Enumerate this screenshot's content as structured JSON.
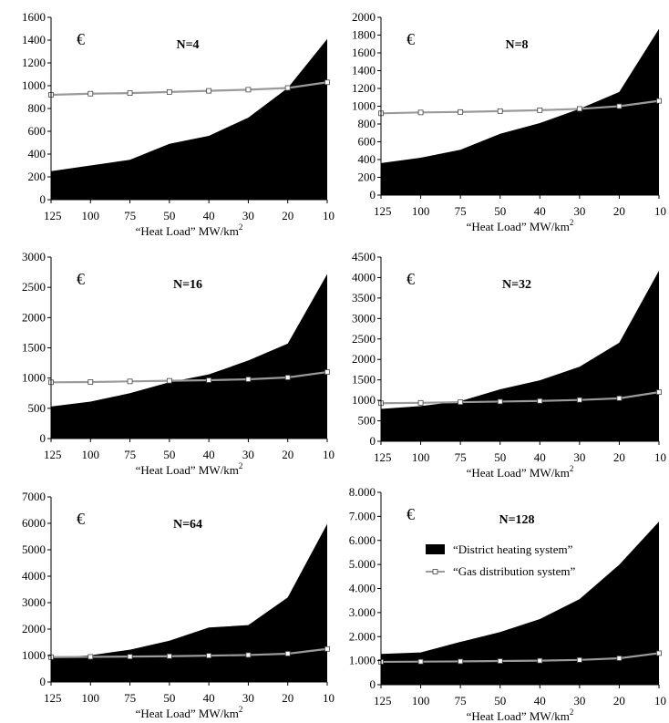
{
  "chart_data": [
    {
      "type": "area",
      "title": "N=4",
      "unit_symbol": "€",
      "xlabel": "“Heat Load” MW/km",
      "xlabel_sup": "2",
      "categories": [
        "125",
        "100",
        "75",
        "50",
        "40",
        "30",
        "20",
        "10"
      ],
      "ylim": [
        0,
        1600
      ],
      "yticks": [
        "0",
        "200",
        "400",
        "600",
        "800",
        "1000",
        "1200",
        "1400",
        "1600"
      ],
      "series": [
        {
          "name": "“District heating system”",
          "type": "area",
          "color": "#000000",
          "values": [
            250,
            300,
            350,
            490,
            560,
            720,
            980,
            1410
          ]
        },
        {
          "name": "“Gas distribution system”",
          "type": "line",
          "color": "#9a9a9a",
          "values": [
            920,
            930,
            935,
            945,
            955,
            965,
            980,
            1030
          ]
        }
      ]
    },
    {
      "type": "area",
      "title": "N=8",
      "unit_symbol": "€",
      "xlabel": "“Heat Load” MW/km",
      "xlabel_sup": "2",
      "categories": [
        "125",
        "100",
        "75",
        "50",
        "40",
        "30",
        "20",
        "10"
      ],
      "ylim": [
        0,
        2000
      ],
      "yticks": [
        "0",
        "200",
        "400",
        "600",
        "800",
        "1000",
        "1200",
        "1400",
        "1600",
        "1800",
        "2000"
      ],
      "series": [
        {
          "name": "“District heating system”",
          "type": "area",
          "color": "#000000",
          "values": [
            360,
            420,
            510,
            690,
            810,
            970,
            1160,
            1870
          ]
        },
        {
          "name": "“Gas distribution system”",
          "type": "line",
          "color": "#9a9a9a",
          "values": [
            920,
            930,
            935,
            945,
            955,
            970,
            1000,
            1060
          ]
        }
      ]
    },
    {
      "type": "area",
      "title": "N=16",
      "unit_symbol": "€",
      "xlabel": "“Heat Load” MW/km",
      "xlabel_sup": "2",
      "categories": [
        "125",
        "100",
        "75",
        "50",
        "40",
        "30",
        "20",
        "10"
      ],
      "ylim": [
        0,
        3000
      ],
      "yticks": [
        "0",
        "500",
        "1000",
        "1500",
        "2000",
        "2500",
        "3000"
      ],
      "series": [
        {
          "name": "“District heating system”",
          "type": "area",
          "color": "#000000",
          "values": [
            530,
            610,
            750,
            930,
            1060,
            1290,
            1570,
            2720
          ]
        },
        {
          "name": "“Gas distribution system”",
          "type": "line",
          "color": "#9a9a9a",
          "values": [
            930,
            935,
            945,
            955,
            965,
            980,
            1010,
            1100
          ]
        }
      ]
    },
    {
      "type": "area",
      "title": "N=32",
      "unit_symbol": "€",
      "xlabel": "“Heat Load” MW/km",
      "xlabel_sup": "2",
      "categories": [
        "125",
        "100",
        "75",
        "50",
        "40",
        "30",
        "20",
        "10"
      ],
      "ylim": [
        0,
        4500
      ],
      "yticks": [
        "0",
        "500",
        "1000",
        "1500",
        "2000",
        "2500",
        "3000",
        "3500",
        "4000",
        "4500"
      ],
      "series": [
        {
          "name": "“District heating system”",
          "type": "area",
          "color": "#000000",
          "values": [
            790,
            860,
            980,
            1270,
            1490,
            1820,
            2410,
            4170
          ]
        },
        {
          "name": "“Gas distribution system”",
          "type": "line",
          "color": "#9a9a9a",
          "values": [
            930,
            940,
            955,
            970,
            985,
            1010,
            1050,
            1200
          ]
        }
      ]
    },
    {
      "type": "area",
      "title": "N=64",
      "unit_symbol": "€",
      "xlabel": "“Heat Load” MW/km",
      "xlabel_sup": "2",
      "categories": [
        "125",
        "100",
        "75",
        "50",
        "40",
        "30",
        "20",
        "10"
      ],
      "ylim": [
        0,
        7000
      ],
      "yticks": [
        "0",
        "1000",
        "2000",
        "3000",
        "4000",
        "5000",
        "6000",
        "7000"
      ],
      "series": [
        {
          "name": "“District heating system”",
          "type": "area",
          "color": "#000000",
          "values": [
            920,
            1010,
            1220,
            1560,
            2060,
            2150,
            3200,
            5980
          ]
        },
        {
          "name": "“Gas distribution system”",
          "type": "line",
          "color": "#9a9a9a",
          "values": [
            940,
            950,
            960,
            975,
            995,
            1020,
            1070,
            1250
          ]
        }
      ]
    },
    {
      "type": "area",
      "title": "N=128",
      "unit_symbol": "€",
      "xlabel": "“Heat Load” MW/km",
      "xlabel_sup": "2",
      "categories": [
        "125",
        "100",
        "75",
        "50",
        "40",
        "30",
        "20",
        "10"
      ],
      "ylim": [
        0,
        8000
      ],
      "yticks": [
        "0",
        "1.000",
        "2.000",
        "3.000",
        "4.000",
        "5.000",
        "6.000",
        "7.000",
        "8.000"
      ],
      "legend": {
        "position": "middle",
        "entries": [
          "“District heating system”",
          "“Gas distribution system”"
        ]
      },
      "series": [
        {
          "name": "“District heating system”",
          "type": "area",
          "color": "#000000",
          "values": [
            1280,
            1340,
            1780,
            2190,
            2730,
            3560,
            4990,
            6780
          ]
        },
        {
          "name": "“Gas distribution system”",
          "type": "line",
          "color": "#9a9a9a",
          "values": [
            950,
            960,
            970,
            985,
            1000,
            1030,
            1100,
            1310
          ]
        }
      ]
    }
  ]
}
